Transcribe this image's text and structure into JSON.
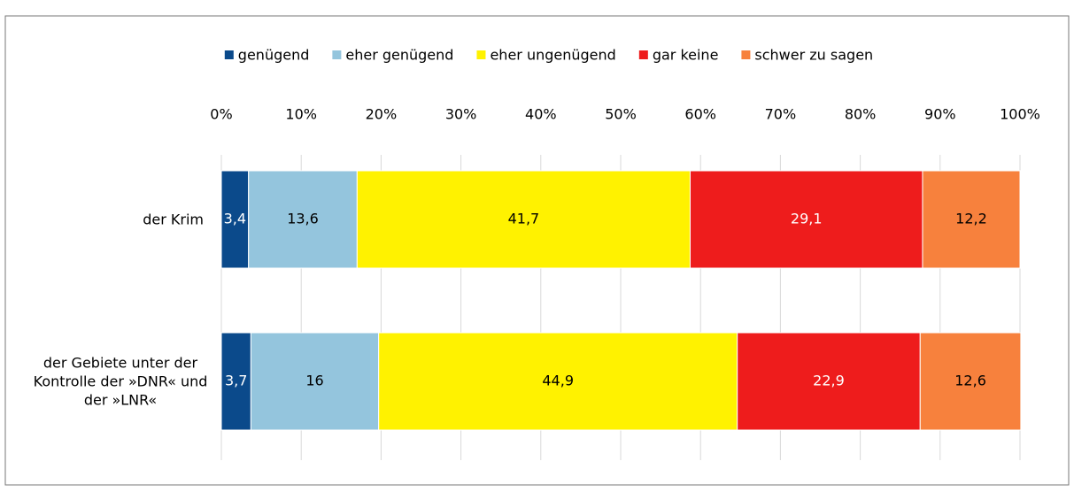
{
  "chart_data": {
    "type": "stacked_barh",
    "categories": [
      "der Krim",
      "der Gebiete unter der Kontrolle der »DNR« und der »LNR«"
    ],
    "series": [
      {
        "name": "genügend",
        "color": "#0b4a8b",
        "values": [
          3.4,
          3.7
        ],
        "value_labels": [
          "3,4",
          "3,7"
        ]
      },
      {
        "name": "eher genügend",
        "color": "#94c5dd",
        "values": [
          13.6,
          16
        ],
        "value_labels": [
          "13,6",
          "16"
        ]
      },
      {
        "name": "eher ungenügend",
        "color": "#fff200",
        "values": [
          41.7,
          44.9
        ],
        "value_labels": [
          "41,7",
          "44,9"
        ]
      },
      {
        "name": "gar keine",
        "color": "#ee1c1c",
        "values": [
          29.1,
          22.9
        ],
        "value_labels": [
          "29,1",
          "22,9"
        ]
      },
      {
        "name": "schwer zu sagen",
        "color": "#f7813d",
        "values": [
          12.2,
          12.6
        ],
        "value_labels": [
          "12,2",
          "12,6"
        ]
      }
    ],
    "xlim": [
      0,
      100
    ],
    "xticks": [
      {
        "value": 0,
        "label": "0%"
      },
      {
        "value": 10,
        "label": "10%"
      },
      {
        "value": 20,
        "label": "20%"
      },
      {
        "value": 30,
        "label": "30%"
      },
      {
        "value": 40,
        "label": "40%"
      },
      {
        "value": 50,
        "label": "50%"
      },
      {
        "value": 60,
        "label": "60%"
      },
      {
        "value": 70,
        "label": "70%"
      },
      {
        "value": 80,
        "label": "80%"
      },
      {
        "value": 90,
        "label": "90%"
      },
      {
        "value": 100,
        "label": "100%"
      }
    ],
    "grid": true,
    "legend": "top"
  }
}
